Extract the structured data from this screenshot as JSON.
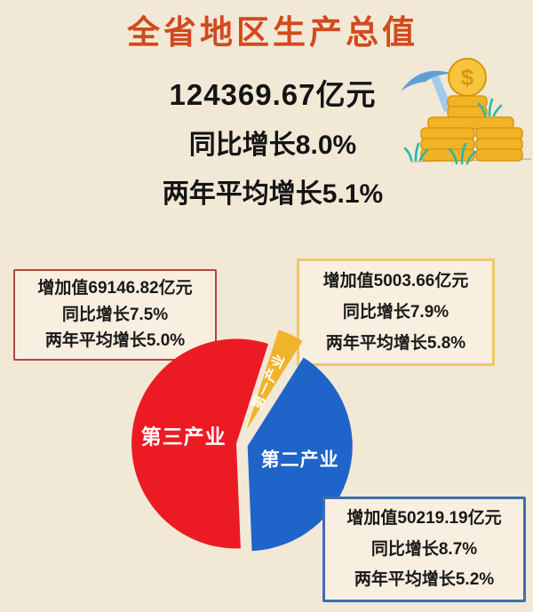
{
  "header": {
    "title": "全省地区生产总值",
    "total_line": "124369.67亿元",
    "yoy_line": "同比增长8.0%",
    "two_year_line": "两年平均增长5.1%"
  },
  "chart_data": {
    "type": "pie",
    "title": "全省地区生产总值",
    "total_value": 124369.67,
    "unit": "亿元",
    "overall_yoy_pct": 8.0,
    "overall_two_year_avg_pct": 5.1,
    "slices": [
      {
        "key": "primary",
        "name": "第一产业",
        "value": 5003.66,
        "share_pct": 4.0,
        "yoy_pct": 7.9,
        "two_year_avg_pct": 5.8,
        "color": "#f1b32a"
      },
      {
        "key": "tertiary",
        "name": "第三产业",
        "value": 69146.82,
        "share_pct": 55.6,
        "yoy_pct": 7.5,
        "two_year_avg_pct": 5.0,
        "color": "#ec1b23"
      },
      {
        "key": "secondary",
        "name": "第二产业",
        "value": 50219.19,
        "share_pct": 40.4,
        "yoy_pct": 8.7,
        "two_year_avg_pct": 5.2,
        "color": "#1f64c8"
      }
    ]
  },
  "callouts": {
    "tertiary": {
      "border_color": "#b3453e",
      "lines": [
        "增加值69146.82亿元",
        "同比增长7.5%",
        "两年平均增长5.0%"
      ]
    },
    "primary": {
      "border_color": "#ecca67",
      "lines": [
        "增加值5003.66亿元",
        "同比增长7.9%",
        "两年平均增长5.8%"
      ]
    },
    "secondary": {
      "border_color": "#3e6db0",
      "lines": [
        "增加值50219.19亿元",
        "同比增长8.7%",
        "两年平均增长5.2%"
      ]
    }
  },
  "icon": {
    "name": "pickaxe-and-coins-illustration",
    "colors": {
      "coin_gold": "#f2b327",
      "coin_outline": "#d6970f",
      "coin_face": "#f7c53d",
      "pickaxe_blade": "#5f9fd8",
      "pickaxe_handle": "#a3cbee",
      "grass_teal": "#2cb7a6",
      "ground_line": "#b7ad9c"
    }
  },
  "colors": {
    "background": "#f2e8d6",
    "title": "#d2491e",
    "text": "#141414"
  }
}
